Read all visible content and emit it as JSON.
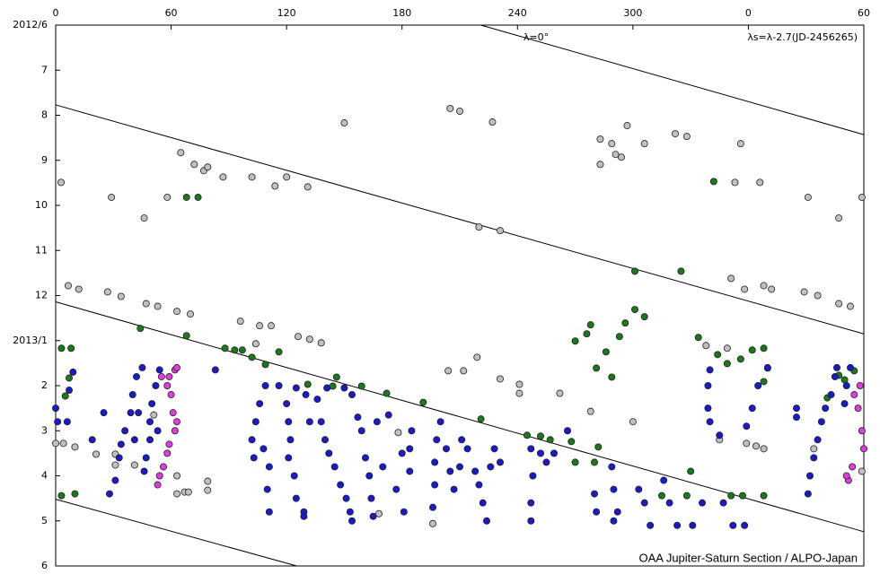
{
  "chart_data": {
    "type": "scatter",
    "annotations": [
      "λ=0°",
      "λs=λ-2.7(JD-2456265)",
      "OAA Jupiter-Saturn Section / ALPO-Japan"
    ],
    "xlim": [
      0,
      420
    ],
    "ylim": [
      0,
      12
    ],
    "xticks": [
      0,
      60,
      120,
      180,
      240,
      300,
      {
        "value": 360,
        "label": "0"
      },
      {
        "value": 420,
        "label": "60"
      }
    ],
    "yticks": [
      {
        "value": 0,
        "label": "2012/6"
      },
      {
        "value": 1,
        "label": "7"
      },
      {
        "value": 2,
        "label": "8"
      },
      {
        "value": 3,
        "label": "9"
      },
      {
        "value": 4,
        "label": "10"
      },
      {
        "value": 5,
        "label": "11"
      },
      {
        "value": 6,
        "label": "12"
      },
      {
        "value": 7,
        "label": "2013/1"
      },
      {
        "value": 8,
        "label": "2"
      },
      {
        "value": 9,
        "label": "3"
      },
      {
        "value": 10,
        "label": "4"
      },
      {
        "value": 11,
        "label": "5"
      },
      {
        "value": 12,
        "label": "6"
      }
    ],
    "drift_lines": [
      {
        "x": [
          221,
          420
        ],
        "y": [
          0,
          2.43
        ]
      },
      {
        "x": [
          0,
          420
        ],
        "y": [
          1.77,
          6.85
        ]
      },
      {
        "x": [
          0,
          420
        ],
        "y": [
          6.14,
          11.24
        ]
      },
      {
        "x": [
          0,
          125.3
        ],
        "y": [
          10.52,
          12
        ]
      }
    ],
    "series": [
      {
        "color": "#c0c0c0",
        "x": [
          2.8,
          150,
          205,
          210,
          227,
          283,
          289,
          297,
          306,
          322,
          328,
          356,
          65,
          72,
          77,
          79,
          87,
          102,
          114,
          120,
          131,
          29,
          58,
          46,
          220,
          231,
          283,
          291,
          294,
          366,
          353,
          391,
          407,
          419,
          6.5,
          12,
          27,
          34,
          47,
          53,
          63,
          70,
          96,
          106,
          112,
          104,
          126,
          132,
          138,
          351,
          358,
          368,
          372,
          389,
          396,
          407,
          413,
          338,
          349,
          204,
          212,
          219,
          231,
          241,
          241,
          262,
          278,
          300,
          0,
          4,
          10,
          21,
          31,
          31,
          41,
          51,
          63,
          67,
          69,
          79,
          79,
          63,
          178,
          196,
          168,
          345,
          359,
          364,
          368,
          394,
          419
        ],
        "values": [
          3.49,
          2.17,
          1.85,
          1.91,
          2.15,
          2.53,
          2.63,
          2.23,
          2.63,
          2.41,
          2.47,
          2.63,
          2.83,
          3.09,
          3.23,
          3.15,
          3.37,
          3.37,
          3.57,
          3.37,
          3.59,
          3.82,
          3.82,
          4.28,
          4.48,
          4.56,
          3.09,
          2.87,
          2.93,
          3.49,
          3.49,
          3.82,
          4.28,
          3.82,
          5.78,
          5.86,
          5.92,
          6.02,
          6.18,
          6.24,
          6.35,
          6.41,
          6.57,
          6.67,
          6.67,
          7.07,
          6.91,
          6.97,
          7.05,
          5.62,
          5.86,
          5.78,
          5.86,
          5.92,
          6.0,
          6.18,
          6.24,
          7.11,
          7.17,
          7.67,
          7.67,
          7.37,
          7.85,
          7.97,
          8.17,
          8.17,
          8.57,
          8.8,
          9.28,
          9.28,
          9.36,
          9.52,
          9.52,
          9.76,
          9.76,
          8.65,
          10.0,
          10.36,
          10.36,
          10.12,
          10.32,
          10.4,
          9.04,
          11.06,
          10.84,
          9.2,
          9.28,
          9.34,
          9.4,
          9.4,
          9.9
        ]
      },
      {
        "color": "#1a7a1a",
        "x": [
          3,
          8,
          7,
          5,
          3,
          10,
          44,
          68,
          68,
          74,
          88,
          93,
          97,
          102,
          109,
          116,
          131,
          144,
          146,
          159,
          172,
          191,
          221,
          245,
          252,
          257,
          268,
          282,
          270,
          280,
          278,
          276,
          270,
          286,
          293,
          296,
          301,
          306,
          281,
          289,
          301,
          325,
          342,
          334,
          344,
          349,
          356,
          362,
          368,
          368,
          370,
          330,
          351,
          357,
          368,
          407,
          401,
          410,
          415,
          315,
          328
        ],
        "values": [
          7.17,
          7.17,
          7.83,
          8.23,
          10.44,
          10.4,
          6.73,
          6.89,
          3.82,
          3.82,
          7.17,
          7.21,
          7.21,
          7.37,
          7.53,
          7.25,
          7.97,
          8.01,
          7.81,
          8.01,
          8.17,
          8.37,
          8.74,
          9.1,
          9.12,
          9.2,
          9.24,
          9.36,
          9.7,
          9.7,
          6.65,
          6.85,
          7.01,
          7.25,
          6.91,
          6.61,
          6.31,
          6.47,
          7.61,
          7.81,
          5.46,
          5.46,
          3.47,
          6.93,
          7.31,
          7.51,
          7.41,
          7.21,
          7.17,
          7.91,
          7.61,
          9.9,
          10.44,
          10.44,
          10.44,
          7.77,
          8.27,
          7.87,
          7.67,
          10.44,
          10.44
        ]
      },
      {
        "color": "#1a1acc",
        "x": [
          0,
          1,
          6,
          7,
          9,
          19,
          25,
          45,
          42,
          40,
          39,
          36,
          34,
          33,
          31,
          28,
          41,
          43,
          54,
          52,
          50,
          49,
          49,
          47,
          46,
          53,
          83,
          109,
          106,
          104,
          102,
          103,
          108,
          111,
          110,
          111,
          116,
          120,
          121,
          122,
          121,
          124,
          125,
          129,
          129,
          125,
          130,
          132,
          136,
          138,
          140,
          142,
          145,
          148,
          151,
          153,
          154,
          141,
          150,
          154,
          157,
          159,
          161,
          163,
          164,
          165,
          167,
          170,
          173,
          177,
          180,
          181,
          184,
          185,
          184,
          200,
          198,
          197,
          197,
          196,
          203,
          205,
          207,
          210,
          211,
          214,
          218,
          220,
          222,
          224,
          226,
          228,
          231,
          247,
          248,
          247,
          247,
          252,
          255,
          259,
          266,
          280,
          281,
          289,
          290,
          292,
          290,
          303,
          306,
          309,
          316,
          319,
          323,
          331,
          336,
          347,
          352,
          358,
          340,
          339,
          339,
          340,
          345,
          370,
          365,
          362,
          359,
          385,
          385,
          396,
          398,
          400,
          403,
          405,
          406,
          394,
          392,
          391,
          413,
          411,
          410
        ],
        "values": [
          8.5,
          8.8,
          8.8,
          8.1,
          7.7,
          9.2,
          8.6,
          7.6,
          7.8,
          8.2,
          8.6,
          9.0,
          9.3,
          9.6,
          10.1,
          10.4,
          9.2,
          8.6,
          7.65,
          8.0,
          8.4,
          8.8,
          9.2,
          9.6,
          9.9,
          9.0,
          7.65,
          8.0,
          8.4,
          8.8,
          9.2,
          9.6,
          9.4,
          9.8,
          10.3,
          10.8,
          8.0,
          8.4,
          8.8,
          9.2,
          9.6,
          10.0,
          10.5,
          10.8,
          10.9,
          8.05,
          8.2,
          8.8,
          8.3,
          8.8,
          9.2,
          9.5,
          9.8,
          10.2,
          10.5,
          10.8,
          11.0,
          8.05,
          8.05,
          8.2,
          8.7,
          9.0,
          9.6,
          10.0,
          10.5,
          10.9,
          8.8,
          9.8,
          8.65,
          10.3,
          9.5,
          10.8,
          9.4,
          9.0,
          9.9,
          8.8,
          9.2,
          9.7,
          10.2,
          10.7,
          9.4,
          9.9,
          10.3,
          9.8,
          9.2,
          9.4,
          9.9,
          10.2,
          10.6,
          11.0,
          9.8,
          9.4,
          9.7,
          9.4,
          10.0,
          10.6,
          11.0,
          9.5,
          9.7,
          9.5,
          9.0,
          10.4,
          10.8,
          9.8,
          10.3,
          10.8,
          11.0,
          10.3,
          10.6,
          11.1,
          10.1,
          10.6,
          11.1,
          11.1,
          10.6,
          10.6,
          11.1,
          11.1,
          7.65,
          8.0,
          8.5,
          8.8,
          9.1,
          7.6,
          8.0,
          8.5,
          8.9,
          8.5,
          8.7,
          9.2,
          8.8,
          8.5,
          8.2,
          7.8,
          7.6,
          9.6,
          10.0,
          10.4,
          7.6,
          8.0,
          8.4
        ]
      },
      {
        "color": "#e03ce0",
        "x": [
          58,
          59,
          62,
          63,
          60,
          61,
          62,
          59,
          58,
          56,
          54,
          53,
          63,
          55,
          415,
          417,
          419,
          420,
          414,
          412,
          411,
          418
        ],
        "values": [
          8.0,
          7.8,
          7.65,
          7.6,
          8.2,
          8.6,
          9.0,
          9.3,
          9.5,
          9.8,
          10.0,
          10.2,
          8.8,
          7.8,
          8.2,
          8.5,
          9.0,
          9.4,
          9.8,
          10.1,
          10.0,
          8.0
        ]
      }
    ]
  }
}
